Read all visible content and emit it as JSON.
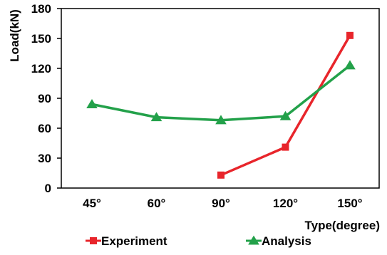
{
  "chart_data": {
    "type": "line",
    "categories": [
      "45°",
      "60°",
      "90°",
      "120°",
      "150°"
    ],
    "series": [
      {
        "name": "Experiment",
        "color": "#e8252b",
        "marker": "square",
        "values": [
          null,
          null,
          13,
          41,
          153
        ]
      },
      {
        "name": "Analysis",
        "color": "#23a14a",
        "marker": "triangle",
        "values": [
          84,
          71,
          68,
          72,
          123
        ]
      }
    ],
    "y_ticks": [
      "0",
      "30",
      "60",
      "90",
      "120",
      "150",
      "180"
    ],
    "xlabel": "Type(degree)",
    "ylabel": "Load(kN)",
    "ylim": [
      0,
      180
    ],
    "grid": false,
    "legend_position": "bottom"
  }
}
